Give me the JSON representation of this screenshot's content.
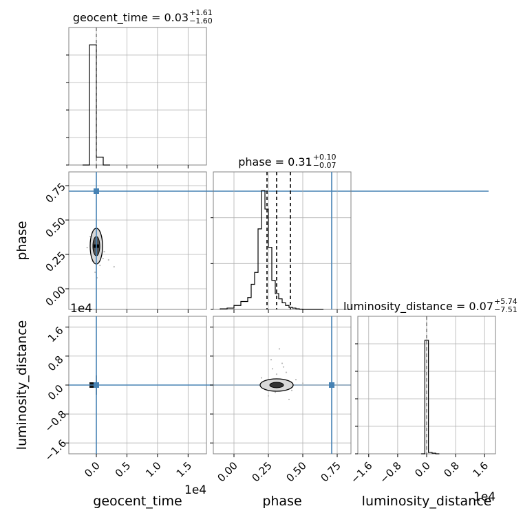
{
  "chart_data": {
    "type": "corner",
    "parameters": [
      "geocent_time",
      "phase",
      "luminosity_distance"
    ],
    "truth_values": {
      "geocent_time": 0.0,
      "phase": 0.71,
      "luminosity_distance": 0.0
    },
    "titles": [
      {
        "param": "geocent_time",
        "label": "geocent_time = 0.03",
        "plus": "+1.61",
        "minus": "−1.60"
      },
      {
        "param": "phase",
        "label": "phase = 0.31",
        "plus": "+0.10",
        "minus": "−0.07"
      },
      {
        "param": "luminosity_distance",
        "label": "luminosity_distance = 0.07",
        "plus": "+5.74",
        "minus": "−7.51"
      }
    ],
    "axes": {
      "geocent_time": {
        "range": [
          -0.45,
          1.8
        ],
        "ticks": [
          0.0,
          0.5,
          1.0,
          1.5
        ],
        "tick_labels": [
          "0.0",
          "0.5",
          "1.0",
          "1.5"
        ],
        "offset": "1e4",
        "xlabel": "geocent_time"
      },
      "phase": {
        "range": [
          -0.15,
          0.85
        ],
        "ticks": [
          0.0,
          0.25,
          0.5,
          0.75
        ],
        "tick_labels": [
          "0.00",
          "0.25",
          "0.50",
          "0.75"
        ],
        "xlabel": "phase",
        "ylabel": "phase"
      },
      "luminosity_distance": {
        "range": [
          -1.9,
          1.9
        ],
        "ticks": [
          -1.6,
          -0.8,
          0.0,
          0.8,
          1.6
        ],
        "tick_labels": [
          "−1.6",
          "−0.8",
          "0.0",
          "0.8",
          "1.6"
        ],
        "offset": "1e4",
        "xlabel": "luminosity_distance",
        "ylabel": "luminosity_distance"
      }
    },
    "histograms": {
      "geocent_time": {
        "edges": [
          -0.225,
          -0.1125,
          0.0,
          0.1125,
          0.225
        ],
        "counts": [
          0,
          0.91,
          0.06,
          0
        ]
      },
      "phase": {
        "edges": [
          -0.1,
          -0.05,
          0.0,
          0.05,
          0.1,
          0.125,
          0.15,
          0.175,
          0.2,
          0.225,
          0.25,
          0.275,
          0.3,
          0.325,
          0.35,
          0.375,
          0.4,
          0.425,
          0.45,
          0.475,
          0.5,
          0.525,
          0.55,
          0.575,
          0.6,
          0.625,
          0.65
        ],
        "counts": [
          0.005,
          0.01,
          0.03,
          0.06,
          0.09,
          0.19,
          0.28,
          0.61,
          0.9,
          0.76,
          0.47,
          0.22,
          0.12,
          0.08,
          0.05,
          0.03,
          0.015,
          0.01,
          0.005,
          0.002,
          0.0,
          0.0,
          0.0,
          0.0,
          0.0,
          0.0
        ],
        "quantiles": [
          0.24,
          0.31,
          0.41
        ]
      },
      "luminosity_distance": {
        "edges": [
          -0.15,
          -0.05,
          0.05,
          0.15,
          0.25,
          0.35
        ],
        "counts": [
          0,
          0.86,
          0.01,
          0.005,
          0
        ]
      }
    },
    "grid": true,
    "axis_offset_labels": [
      "1e4",
      "1e4",
      "1e4"
    ]
  }
}
